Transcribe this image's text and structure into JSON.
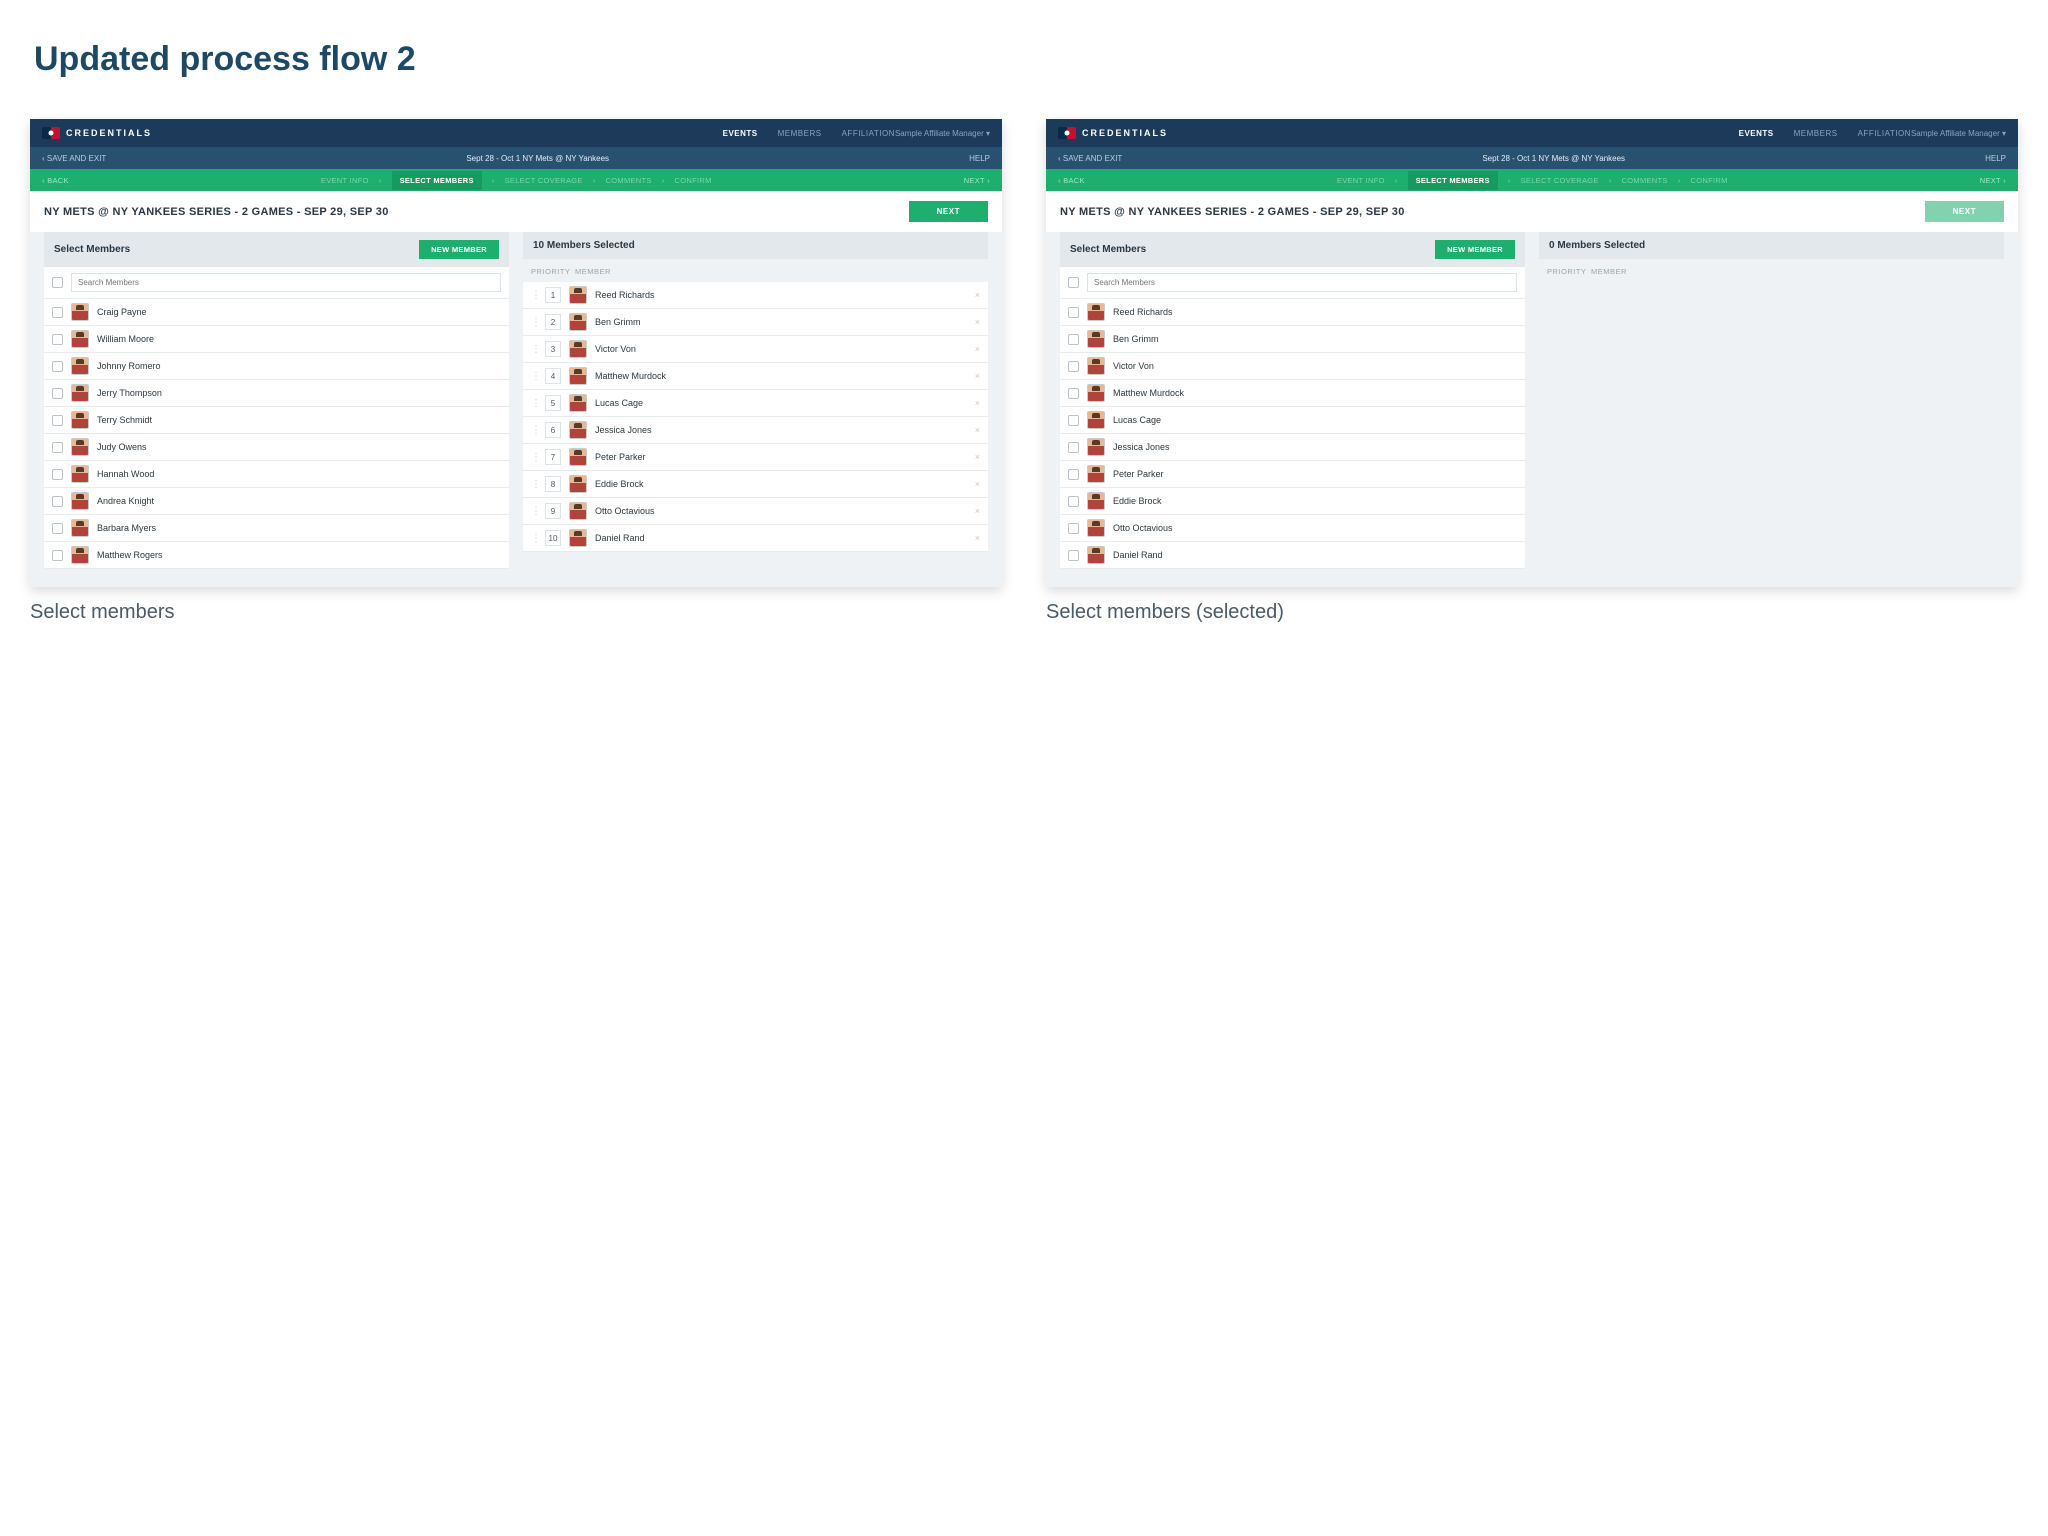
{
  "slide_title": "Updated process flow 2",
  "captions": [
    "Select members",
    "Select members (selected)"
  ],
  "brand": "CREDENTIALS",
  "topnav": {
    "items": [
      "EVENTS",
      "MEMBERS",
      "AFFILIATION"
    ],
    "active_index": 0
  },
  "usermenu_label": "Sample Affiliate Manager",
  "subbar": {
    "save": "SAVE AND EXIT",
    "title": "Sept 28 - Oct 1 NY Mets @ NY Yankees",
    "help": "HELP"
  },
  "stepbar": {
    "back": "BACK",
    "next": "NEXT",
    "steps": [
      "EVENT INFO",
      "SELECT MEMBERS",
      "SELECT COVERAGE",
      "COMMENTS",
      "CONFIRM"
    ],
    "active_index": 1
  },
  "page_header": "NY METS @ NY YANKEES SERIES - 2 GAMES - SEP 29, SEP 30",
  "next_button": "NEXT",
  "left_col": {
    "title": "Select Members",
    "new_button": "NEW MEMBER",
    "search_placeholder": "Search Members"
  },
  "right_col": {
    "priority_label": "PRIORITY",
    "member_label": "MEMBER"
  },
  "panels": [
    {
      "right_title": "10 Members Selected",
      "next_faded": false,
      "left_members": [
        "Craig Payne",
        "William Moore",
        "Johnny Romero",
        "Jerry Thompson",
        "Terry Schmidt",
        "Judy Owens",
        "Hannah Wood",
        "Andrea Knight",
        "Barbara Myers",
        "Matthew Rogers"
      ],
      "selected": [
        {
          "p": 1,
          "n": "Reed Richards"
        },
        {
          "p": 2,
          "n": "Ben Grimm"
        },
        {
          "p": 3,
          "n": "Victor Von"
        },
        {
          "p": 4,
          "n": "Matthew Murdock"
        },
        {
          "p": 5,
          "n": "Lucas Cage"
        },
        {
          "p": 6,
          "n": "Jessica Jones"
        },
        {
          "p": 7,
          "n": "Peter Parker"
        },
        {
          "p": 8,
          "n": "Eddie Brock"
        },
        {
          "p": 9,
          "n": "Otto Octavious"
        },
        {
          "p": 10,
          "n": "Daniel Rand"
        }
      ]
    },
    {
      "right_title": "0 Members Selected",
      "next_faded": true,
      "left_members": [
        "Reed Richards",
        "Ben Grimm",
        "Victor Von",
        "Matthew Murdock",
        "Lucas Cage",
        "Jessica Jones",
        "Peter Parker",
        "Eddie Brock",
        "Otto Octavious",
        "Daniel Rand"
      ],
      "selected": []
    }
  ],
  "colors": {
    "page_bg": "#ffffff",
    "slide_title": "#1e4965",
    "panel_bg": "#eef2f4",
    "topbar_bg": "#1c3a5a",
    "subbar_bg": "#28506f",
    "stepbar_bg": "#1eae6e",
    "step_active_bg": "#159a5f",
    "accent_green": "#1eae6e",
    "text_dark": "#2a3742",
    "text_muted": "#98a4ae",
    "border": "#e6ebee"
  }
}
